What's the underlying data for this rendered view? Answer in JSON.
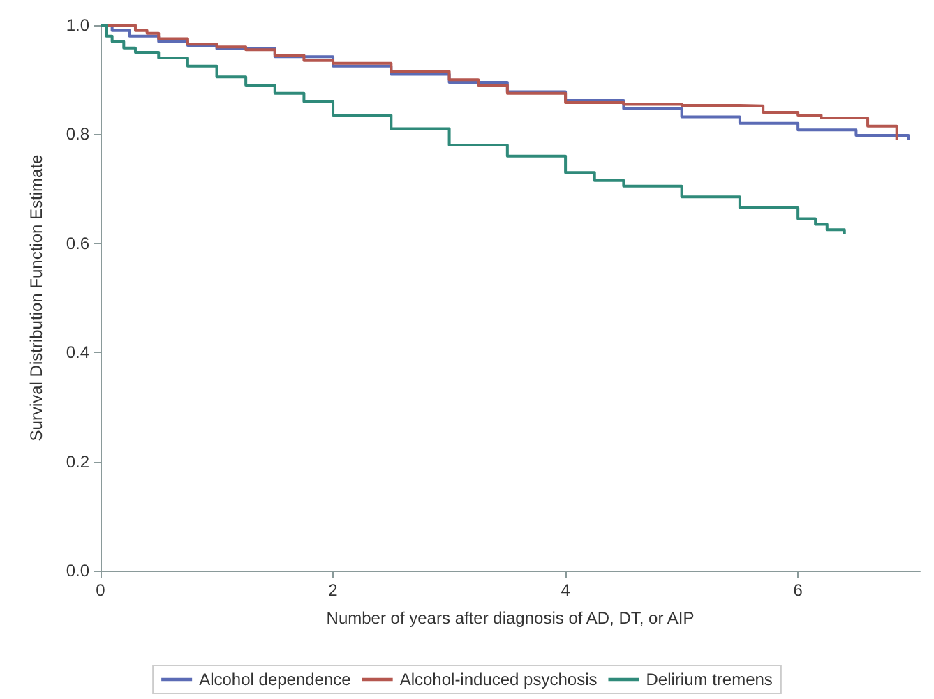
{
  "chart_data": {
    "type": "step",
    "xlabel": "Number of years after diagnosis of AD, DT, or AIP",
    "ylabel": "Survival Distribution Function Estimate",
    "xlim": [
      0,
      7.05
    ],
    "xticks": [
      0,
      2,
      4,
      6
    ],
    "ylim": [
      0,
      1
    ],
    "yticks": [
      {
        "value": 0,
        "label": "0.0"
      },
      {
        "value": 0.2,
        "label": "0.2"
      },
      {
        "value": 0.4,
        "label": "0.4"
      },
      {
        "value": 0.6,
        "label": "0.6"
      },
      {
        "value": 0.8,
        "label": "0.8"
      },
      {
        "value": 1,
        "label": "1.0"
      }
    ],
    "grid": false,
    "legend": "bottom",
    "marker": "none",
    "line_style": "solid",
    "series": [
      {
        "name": "Alcohol dependence",
        "color": "#5b6bb5",
        "x": [
          0,
          0.1,
          0.25,
          0.5,
          0.75,
          1,
          1.5,
          2,
          2.5,
          3,
          3.5,
          4,
          4.5,
          5,
          5.5,
          6,
          6.5,
          6.95
        ],
        "values": [
          1,
          0.99,
          0.98,
          0.97,
          0.963,
          0.957,
          0.942,
          0.925,
          0.91,
          0.895,
          0.878,
          0.862,
          0.847,
          0.832,
          0.82,
          0.808,
          0.798,
          0.79
        ]
      },
      {
        "name": "Alcohol-induced psychosis",
        "color": "#b5574f",
        "x": [
          0,
          0.3,
          0.4,
          0.5,
          0.75,
          1,
          1.25,
          1.5,
          1.75,
          2,
          2.5,
          3,
          3.25,
          3.5,
          4,
          4.5,
          5,
          5.5,
          5.7,
          6,
          6.2,
          6.6,
          6.85
        ],
        "values": [
          1,
          0.99,
          0.985,
          0.975,
          0.965,
          0.96,
          0.955,
          0.945,
          0.935,
          0.93,
          0.915,
          0.9,
          0.89,
          0.875,
          0.858,
          0.855,
          0.853,
          0.852,
          0.84,
          0.835,
          0.83,
          0.815,
          0.79
        ]
      },
      {
        "name": "Delirium tremens",
        "color": "#2f8a7a",
        "x": [
          0,
          0.05,
          0.1,
          0.2,
          0.3,
          0.5,
          0.75,
          1,
          1.25,
          1.5,
          1.75,
          2,
          2.5,
          3,
          3.5,
          4,
          4.25,
          4.5,
          5,
          5.5,
          6,
          6.15,
          6.25,
          6.4
        ],
        "values": [
          1,
          0.98,
          0.97,
          0.958,
          0.95,
          0.94,
          0.925,
          0.905,
          0.89,
          0.875,
          0.86,
          0.835,
          0.81,
          0.78,
          0.76,
          0.73,
          0.715,
          0.705,
          0.685,
          0.665,
          0.645,
          0.635,
          0.625,
          0.617
        ]
      }
    ]
  }
}
